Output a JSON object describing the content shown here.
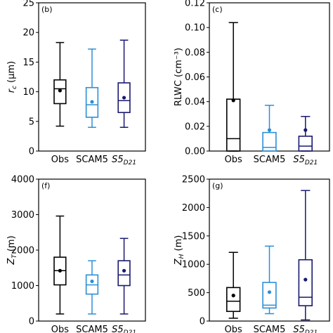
{
  "colors": {
    "Obs": "#000000",
    "SCAM5": "#2c8fd6",
    "S5D21": "#191970"
  },
  "chart_data": [
    {
      "type": "box",
      "panel_label": "(b)",
      "ylabel_main": "r",
      "ylabel_sub": "c",
      "ylabel_unit": "(μm)",
      "ylim": [
        0,
        25
      ],
      "yticks": [
        0,
        5,
        10,
        15,
        20,
        25
      ],
      "ytick_labels": [
        "0",
        "5",
        "10",
        "15",
        "20",
        "25"
      ],
      "categories": [
        {
          "main": "Obs",
          "sub": ""
        },
        {
          "main": "SCAM5",
          "sub": ""
        },
        {
          "main": "S5",
          "sub": "D21"
        }
      ],
      "series": [
        {
          "whisker_low": 4.2,
          "q1": 8.0,
          "median": 10.5,
          "q3": 12.0,
          "whisker_high": 18.3,
          "mean": 10.2
        },
        {
          "whisker_low": 4.0,
          "q1": 5.7,
          "median": 7.8,
          "q3": 10.7,
          "whisker_high": 17.2,
          "mean": 8.3
        },
        {
          "whisker_low": 4.0,
          "q1": 6.5,
          "median": 8.5,
          "q3": 11.5,
          "whisker_high": 18.7,
          "mean": 9.0
        }
      ]
    },
    {
      "type": "box",
      "panel_label": "(c)",
      "ylabel_main": "RLWC",
      "ylabel_sub": "",
      "ylabel_unit": "(cm⁻³)",
      "ylim": [
        0,
        0.12
      ],
      "yticks": [
        0,
        0.02,
        0.04,
        0.06,
        0.08,
        0.1,
        0.12
      ],
      "ytick_labels": [
        "0.00",
        "0.02",
        "0.04",
        "0.06",
        "0.08",
        "0.10",
        "0.12"
      ],
      "categories": [
        {
          "main": "Obs",
          "sub": ""
        },
        {
          "main": "SCAM5",
          "sub": ""
        },
        {
          "main": "S5",
          "sub": "D21"
        }
      ],
      "series": [
        {
          "whisker_low": 0.0,
          "q1": 0.0,
          "median": 0.01,
          "q3": 0.042,
          "whisker_high": 0.104,
          "mean": 0.041
        },
        {
          "whisker_low": 0.0,
          "q1": 0.0,
          "median": 0.003,
          "q3": 0.015,
          "whisker_high": 0.037,
          "mean": 0.017
        },
        {
          "whisker_low": 0.0,
          "q1": 0.0,
          "median": 0.004,
          "q3": 0.012,
          "whisker_high": 0.028,
          "mean": 0.017
        }
      ]
    },
    {
      "type": "box",
      "panel_label": "(f)",
      "ylabel_main": "Z",
      "ylabel_sub": "T",
      "ylabel_unit": "(m)",
      "ylim": [
        0,
        4000
      ],
      "yticks": [
        0,
        1000,
        2000,
        3000,
        4000
      ],
      "ytick_labels": [
        "0",
        "1000",
        "2000",
        "3000",
        "4000"
      ],
      "categories": [
        {
          "main": "Obs",
          "sub": ""
        },
        {
          "main": "SCAM5",
          "sub": ""
        },
        {
          "main": "S5",
          "sub": "D21"
        }
      ],
      "series": [
        {
          "whisker_low": 200,
          "q1": 1020,
          "median": 1420,
          "q3": 1800,
          "whisker_high": 2960,
          "mean": 1420
        },
        {
          "whisker_low": 200,
          "q1": 760,
          "median": 1020,
          "q3": 1300,
          "whisker_high": 1700,
          "mean": 1120
        },
        {
          "whisker_low": 200,
          "q1": 1000,
          "median": 1300,
          "q3": 1700,
          "whisker_high": 2330,
          "mean": 1420
        }
      ]
    },
    {
      "type": "box",
      "panel_label": "(g)",
      "ylabel_main": "Z",
      "ylabel_sub": "H",
      "ylabel_unit": "(m)",
      "ylim": [
        0,
        2500
      ],
      "yticks": [
        0,
        500,
        1000,
        1500,
        2000,
        2500
      ],
      "ytick_labels": [
        "0",
        "500",
        "1000",
        "1500",
        "2000",
        "2500"
      ],
      "categories": [
        {
          "main": "Obs",
          "sub": ""
        },
        {
          "main": "SCAM5",
          "sub": ""
        },
        {
          "main": "S5",
          "sub": "D21"
        }
      ],
      "series": [
        {
          "whisker_low": 50,
          "q1": 170,
          "median": 350,
          "q3": 590,
          "whisker_high": 1210,
          "mean": 450
        },
        {
          "whisker_low": 130,
          "q1": 230,
          "median": 280,
          "q3": 680,
          "whisker_high": 1320,
          "mean": 510
        },
        {
          "whisker_low": 20,
          "q1": 270,
          "median": 420,
          "q3": 1080,
          "whisker_high": 2300,
          "mean": 730
        }
      ]
    }
  ]
}
